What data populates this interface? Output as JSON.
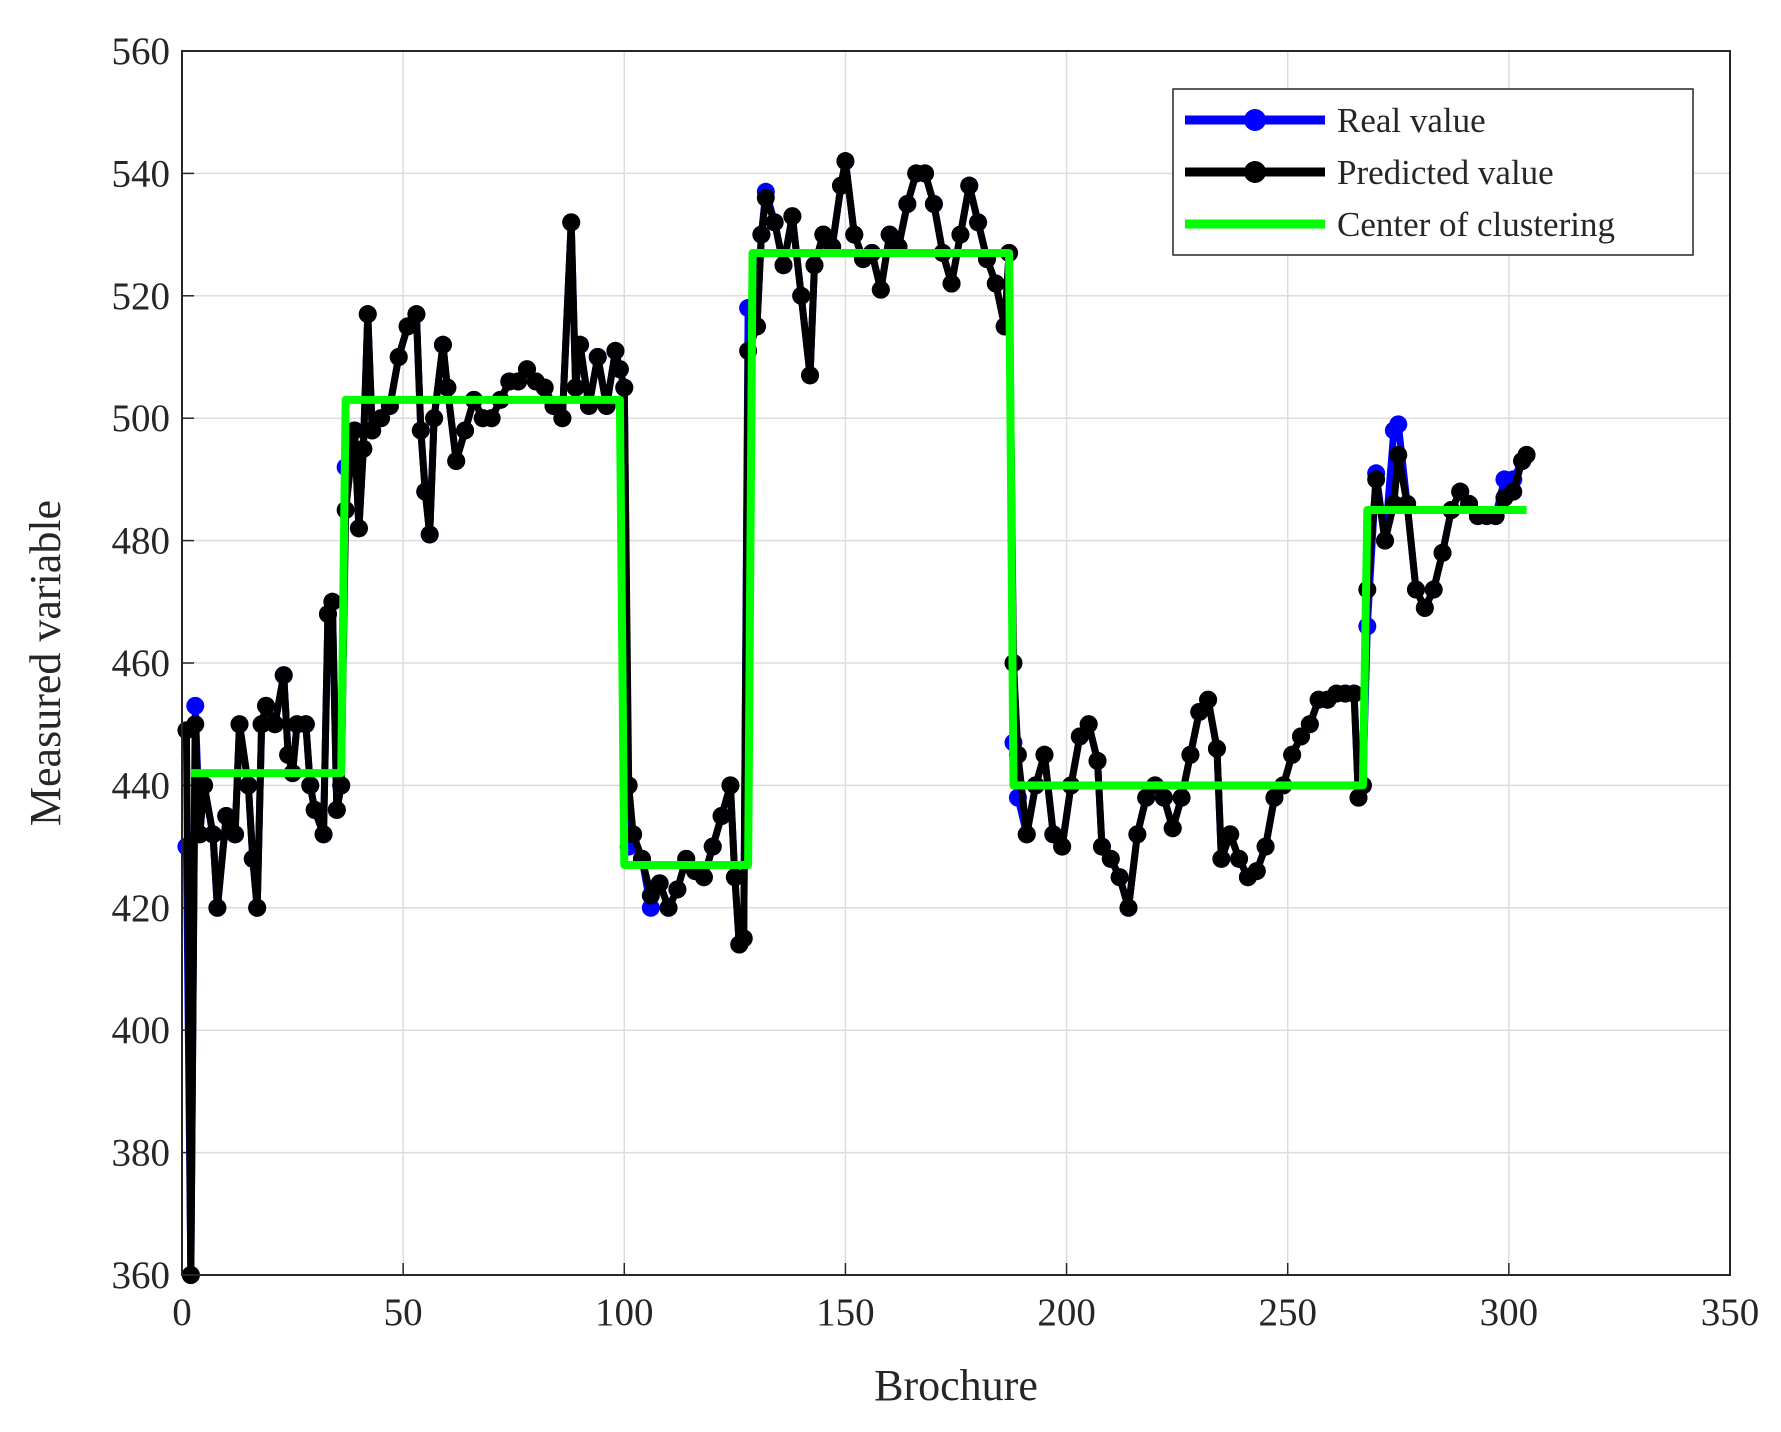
{
  "chart_data": {
    "type": "line",
    "xlabel": "Brochure",
    "ylabel": "Measured variable",
    "xlim": [
      0,
      350
    ],
    "xticks": [
      0,
      50,
      100,
      150,
      200,
      250,
      300,
      350
    ],
    "ylim": [
      360,
      560
    ],
    "yticks": [
      360,
      380,
      400,
      420,
      440,
      460,
      480,
      500,
      520,
      540,
      560
    ],
    "grid": true,
    "legend": "upper right",
    "x": [
      1,
      2,
      3,
      4,
      5,
      7,
      8,
      10,
      12,
      13,
      15,
      16,
      17,
      18,
      19,
      21,
      23,
      24,
      25,
      26,
      28,
      29,
      30,
      32,
      33,
      34,
      35,
      36,
      37,
      39,
      40,
      41,
      42,
      43,
      45,
      47,
      49,
      51,
      53,
      54,
      55,
      56,
      57,
      59,
      60,
      62,
      64,
      66,
      68,
      70,
      72,
      74,
      76,
      78,
      80,
      82,
      84,
      86,
      88,
      89,
      90,
      92,
      94,
      96,
      98,
      99,
      100,
      101,
      102,
      104,
      106,
      108,
      110,
      112,
      114,
      116,
      118,
      120,
      122,
      124,
      125,
      126,
      127,
      128,
      130,
      131,
      132,
      134,
      136,
      138,
      140,
      142,
      143,
      145,
      147,
      149,
      150,
      152,
      154,
      156,
      158,
      160,
      162,
      164,
      166,
      168,
      170,
      172,
      174,
      176,
      178,
      180,
      182,
      184,
      186,
      187,
      188,
      189,
      191,
      193,
      195,
      197,
      199,
      201,
      203,
      205,
      207,
      208,
      210,
      212,
      214,
      216,
      218,
      220,
      222,
      224,
      226,
      228,
      230,
      232,
      234,
      235,
      237,
      239,
      241,
      243,
      245,
      247,
      249,
      251,
      253,
      255,
      257,
      259,
      261,
      263,
      265,
      266,
      267,
      268,
      270,
      272,
      274,
      275,
      277,
      279,
      281,
      283,
      285,
      287,
      289,
      291,
      293,
      295,
      297,
      299,
      301,
      303,
      304
    ],
    "series": [
      {
        "name": "Real value",
        "color": "#0000ff",
        "marker": true,
        "values": [
          430,
          360,
          453,
          432,
          440,
          432,
          420,
          435,
          432,
          450,
          440,
          428,
          420,
          450,
          453,
          450,
          458,
          445,
          442,
          450,
          450,
          440,
          436,
          432,
          468,
          470,
          436,
          440,
          492,
          498,
          482,
          495,
          517,
          498,
          500,
          502,
          510,
          515,
          517,
          498,
          488,
          481,
          500,
          512,
          505,
          493,
          498,
          503,
          500,
          500,
          503,
          506,
          506,
          508,
          506,
          505,
          502,
          500,
          532,
          505,
          512,
          502,
          510,
          502,
          511,
          508,
          505,
          430,
          432,
          428,
          420,
          424,
          420,
          423,
          428,
          426,
          425,
          430,
          435,
          440,
          425,
          414,
          415,
          518,
          515,
          530,
          537,
          532,
          525,
          533,
          520,
          507,
          525,
          530,
          528,
          538,
          542,
          530,
          526,
          527,
          521,
          530,
          528,
          535,
          540,
          540,
          535,
          527,
          522,
          530,
          538,
          532,
          526,
          522,
          515,
          527,
          447,
          438,
          432,
          440,
          445,
          432,
          430,
          440,
          448,
          450,
          444,
          430,
          428,
          425,
          420,
          432,
          438,
          440,
          438,
          433,
          438,
          445,
          452,
          454,
          446,
          428,
          432,
          428,
          425,
          426,
          430,
          438,
          440,
          445,
          448,
          450,
          454,
          454,
          455,
          455,
          455,
          438,
          440,
          466,
          491,
          480,
          498,
          499,
          486,
          472,
          469,
          472,
          478,
          485,
          488,
          486,
          484,
          484,
          484,
          490,
          490,
          493,
          494
        ]
      },
      {
        "name": "Predicted value",
        "color": "#000000",
        "marker": true,
        "values": [
          449,
          360,
          450,
          432,
          440,
          432,
          420,
          435,
          432,
          450,
          440,
          428,
          420,
          450,
          453,
          450,
          458,
          445,
          442,
          450,
          450,
          440,
          436,
          432,
          468,
          470,
          436,
          440,
          485,
          498,
          482,
          495,
          517,
          498,
          500,
          502,
          510,
          515,
          517,
          498,
          488,
          481,
          500,
          512,
          505,
          493,
          498,
          503,
          500,
          500,
          503,
          506,
          506,
          508,
          506,
          505,
          502,
          500,
          532,
          505,
          512,
          502,
          510,
          502,
          511,
          508,
          505,
          440,
          432,
          428,
          422,
          424,
          420,
          423,
          428,
          426,
          425,
          430,
          435,
          440,
          425,
          414,
          415,
          511,
          515,
          530,
          536,
          532,
          525,
          533,
          520,
          507,
          525,
          530,
          528,
          538,
          542,
          530,
          526,
          527,
          521,
          530,
          528,
          535,
          540,
          540,
          535,
          527,
          522,
          530,
          538,
          532,
          526,
          522,
          515,
          527,
          460,
          445,
          432,
          440,
          445,
          432,
          430,
          440,
          448,
          450,
          444,
          430,
          428,
          425,
          420,
          432,
          438,
          440,
          438,
          433,
          438,
          445,
          452,
          454,
          446,
          428,
          432,
          428,
          425,
          426,
          430,
          438,
          440,
          445,
          448,
          450,
          454,
          454,
          455,
          455,
          455,
          438,
          440,
          472,
          490,
          480,
          486,
          494,
          486,
          472,
          469,
          472,
          478,
          485,
          488,
          486,
          484,
          484,
          484,
          487,
          488,
          493,
          494
        ]
      },
      {
        "name": "Center of clustering",
        "color": "#00ff00",
        "marker": false,
        "x": [
          2,
          36,
          37,
          99,
          100,
          128,
          129,
          187,
          188,
          267,
          268,
          304
        ],
        "values": [
          442,
          442,
          503,
          503,
          427,
          427,
          527,
          527,
          440,
          440,
          485,
          485
        ]
      }
    ]
  }
}
